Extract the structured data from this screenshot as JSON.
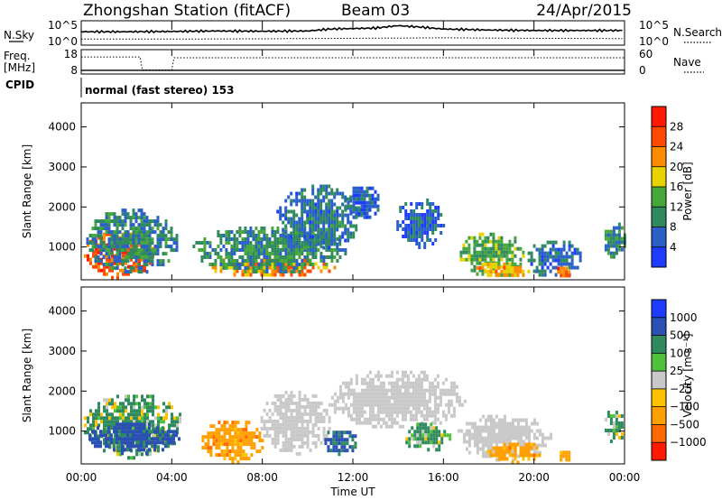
{
  "header": {
    "station": "Zhongshan Station (fitACF)",
    "beam": "Beam 03",
    "date": "24/Apr/2015"
  },
  "colors": {
    "power_scale": [
      "#1e3cff",
      "#2a60c8",
      "#2f8a5e",
      "#46a83a",
      "#e8d200",
      "#ff8c00",
      "#ff4a00",
      "#ff1a00"
    ],
    "velocity_scale": [
      "#ff1a00",
      "#ff6a00",
      "#ffa000",
      "#ffc000",
      "#c8c8c8",
      "#4fc23a",
      "#2f8a5e",
      "#2a50b4",
      "#1e3cff"
    ]
  },
  "chart_data": [
    {
      "type": "line",
      "name": "noise-panel",
      "left_label": "N.Sky",
      "right_label": "N.Search",
      "left_ticks": [
        "10^5",
        "10^0"
      ],
      "right_ticks": [
        "10^5",
        "10^0"
      ],
      "series": [
        {
          "name": "N.Sky",
          "style": "solid",
          "x": [
            0,
            2,
            4,
            6,
            8,
            10,
            11,
            12,
            13,
            14,
            15,
            16,
            18,
            20,
            22,
            24
          ],
          "values": [
            0.55,
            0.55,
            0.56,
            0.58,
            0.57,
            0.58,
            0.66,
            0.68,
            0.7,
            0.8,
            0.74,
            0.66,
            0.62,
            0.6,
            0.6,
            0.6
          ]
        },
        {
          "name": "N.Search",
          "style": "dotted",
          "x": [
            0,
            4,
            8,
            12,
            16,
            20,
            24
          ],
          "values": [
            0.25,
            0.25,
            0.26,
            0.28,
            0.3,
            0.28,
            0.27
          ]
        }
      ]
    },
    {
      "type": "line",
      "name": "frequency-panel",
      "left_label": "Freq. [MHz]",
      "right_label": "Nave",
      "left_ticks": [
        "18",
        "8"
      ],
      "right_ticks": [
        "60",
        "0"
      ],
      "series": [
        {
          "name": "Freq.",
          "style": "solid",
          "x": [
            0,
            24
          ],
          "values": [
            9.5,
            9.5
          ]
        },
        {
          "name": "Nave",
          "style": "dotted",
          "x": [
            0,
            2.6,
            2.7,
            4.0,
            4.1,
            24
          ],
          "values": [
            42,
            42,
            10,
            10,
            40,
            40
          ]
        }
      ]
    },
    {
      "type": "table",
      "name": "cpid",
      "label": "CPID",
      "text": "normal (fast stereo) 153"
    },
    {
      "type": "heatmap",
      "name": "power-panel",
      "ylabel": "Slant Range [km]",
      "yticks": [
        "1000",
        "2000",
        "3000",
        "4000"
      ],
      "ylim": [
        180,
        4600
      ],
      "xlim": [
        0,
        24
      ],
      "colorbar": {
        "label": "Power [dB]",
        "ticks": [
          "4",
          "8",
          "12",
          "16",
          "20",
          "24",
          "28"
        ],
        "range": [
          0,
          32
        ]
      },
      "blobs": [
        {
          "t0": 0.0,
          "t1": 3.2,
          "r0": 250,
          "r1": 1450,
          "v": 25
        },
        {
          "t0": 0.1,
          "t1": 4.3,
          "r0": 350,
          "r1": 2050,
          "v": 9
        },
        {
          "t0": 5.4,
          "t1": 11.3,
          "r0": 300,
          "r1": 800,
          "v": 22
        },
        {
          "t0": 4.8,
          "t1": 11.8,
          "r0": 350,
          "r1": 1600,
          "v": 10
        },
        {
          "t0": 8.5,
          "t1": 12.4,
          "r0": 900,
          "r1": 2650,
          "v": 8
        },
        {
          "t0": 11.5,
          "t1": 13.2,
          "r0": 1700,
          "r1": 2600,
          "v": 6
        },
        {
          "t0": 13.8,
          "t1": 16.0,
          "r0": 1000,
          "r1": 2300,
          "v": 6
        },
        {
          "t0": 16.6,
          "t1": 19.6,
          "r0": 250,
          "r1": 1450,
          "v": 13
        },
        {
          "t0": 17.2,
          "t1": 19.8,
          "r0": 250,
          "r1": 700,
          "v": 20
        },
        {
          "t0": 19.6,
          "t1": 22.1,
          "r0": 250,
          "r1": 1250,
          "v": 7
        },
        {
          "t0": 20.9,
          "t1": 21.6,
          "r0": 250,
          "r1": 600,
          "v": 24
        },
        {
          "t0": 23.0,
          "t1": 24.0,
          "r0": 750,
          "r1": 1700,
          "v": 10
        }
      ]
    },
    {
      "type": "heatmap",
      "name": "velocity-panel",
      "ylabel": "Slant Range [km]",
      "yticks": [
        "1000",
        "2000",
        "3000",
        "4000"
      ],
      "ylim": [
        180,
        4600
      ],
      "xlim": [
        0,
        24
      ],
      "xticks": [
        "00:00",
        "04:00",
        "08:00",
        "12:00",
        "16:00",
        "20:00",
        "00:00"
      ],
      "xlabel": "Time UT",
      "colorbar": {
        "label": "Velocity [m s⁻¹]",
        "ticks": [
          "-1000",
          "-500",
          "-100",
          "-25",
          "25",
          "100",
          "500",
          "1000"
        ],
        "range": [
          -1300,
          1300
        ]
      },
      "blobs": [
        {
          "t0": 0.0,
          "t1": 4.5,
          "r0": 350,
          "r1": 2000,
          "v": 150
        },
        {
          "t0": 0.2,
          "t1": 4.4,
          "r0": 450,
          "r1": 1300,
          "v": 700
        },
        {
          "t0": 5.2,
          "t1": 8.2,
          "r0": 250,
          "r1": 1350,
          "v": -300
        },
        {
          "t0": 7.8,
          "t1": 11.0,
          "r0": 450,
          "r1": 2100,
          "v": 0
        },
        {
          "t0": 10.5,
          "t1": 12.2,
          "r0": 450,
          "r1": 1100,
          "v": 500
        },
        {
          "t0": 10.8,
          "t1": 17.0,
          "r0": 1050,
          "r1": 2600,
          "v": 0
        },
        {
          "t0": 14.2,
          "t1": 16.3,
          "r0": 500,
          "r1": 1300,
          "v": 200
        },
        {
          "t0": 16.5,
          "t1": 20.8,
          "r0": 300,
          "r1": 1500,
          "v": 0
        },
        {
          "t0": 17.8,
          "t1": 20.4,
          "r0": 250,
          "r1": 800,
          "v": -300
        },
        {
          "t0": 20.9,
          "t1": 21.6,
          "r0": 250,
          "r1": 600,
          "v": -300
        },
        {
          "t0": 23.0,
          "t1": 24.0,
          "r0": 700,
          "r1": 1600,
          "v": 150
        }
      ]
    }
  ]
}
